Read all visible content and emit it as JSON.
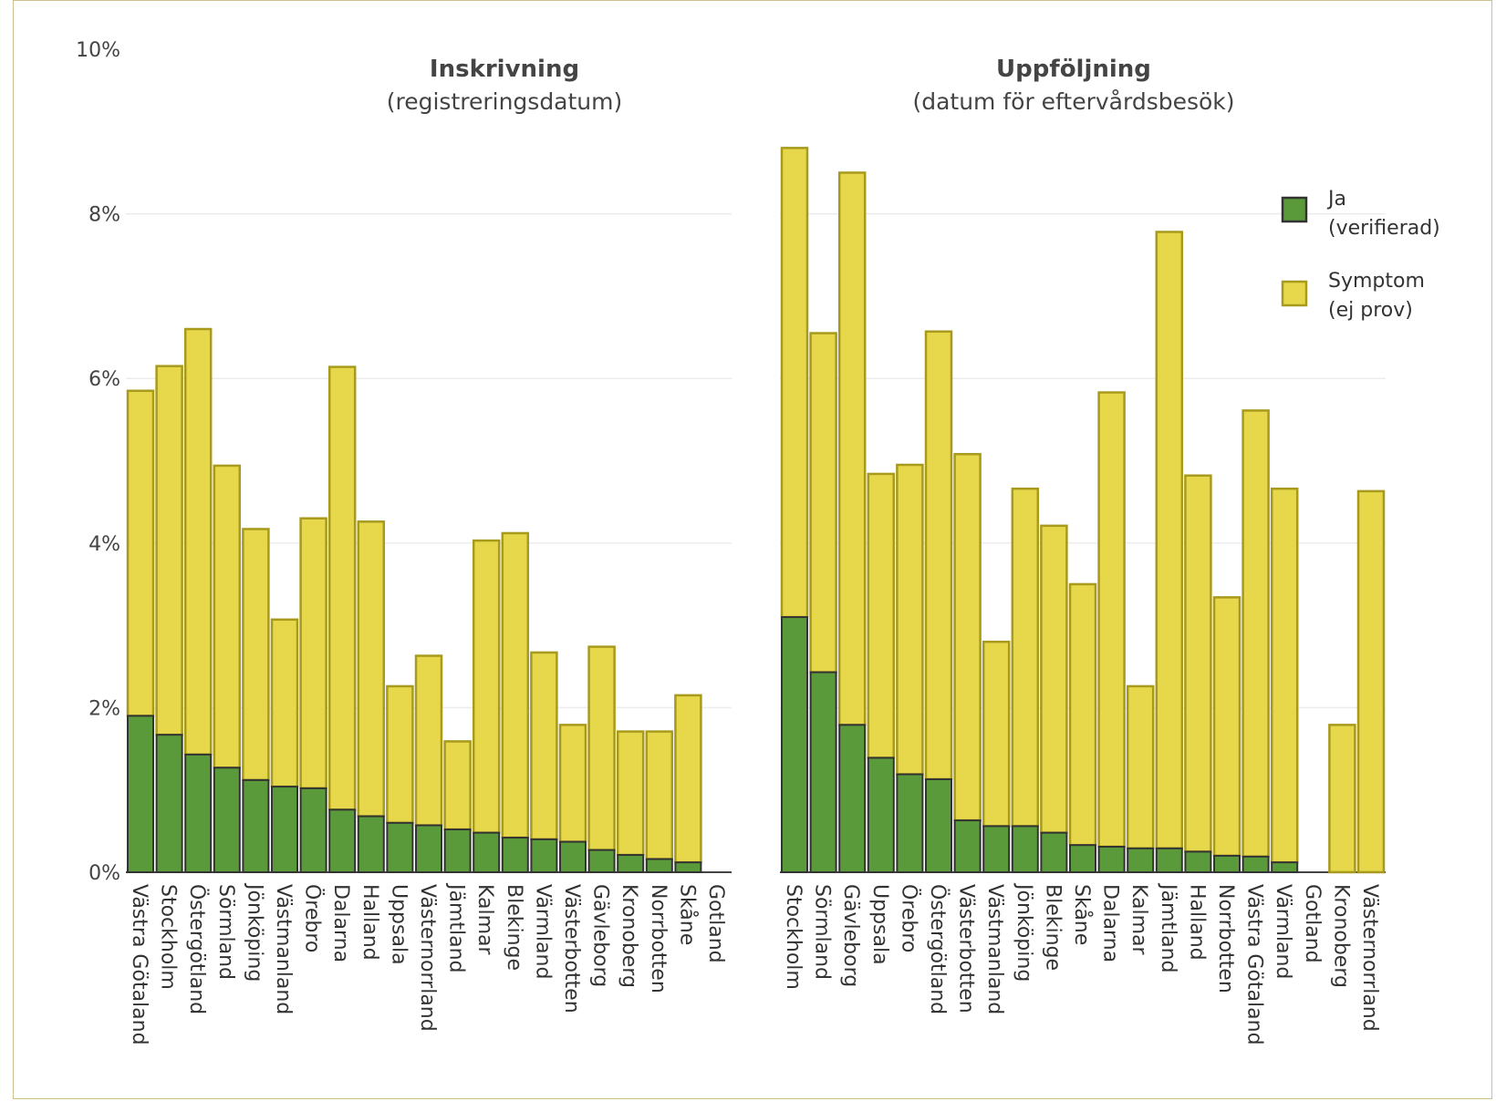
{
  "colors": {
    "ja": "#5b9a3a",
    "ja_stroke": "#333333",
    "symptom": "#e6d84a",
    "symptom_stroke": "#a89a1c",
    "grid": "#ececec",
    "axis": "#444444"
  },
  "legend": {
    "items": [
      {
        "key": "ja",
        "lines": [
          "Ja",
          "(verifierad)"
        ]
      },
      {
        "key": "symptom",
        "lines": [
          "Symptom",
          "(ej prov)"
        ]
      }
    ]
  },
  "chart_data": [
    {
      "type": "bar",
      "stacked": true,
      "title": "Inskrivning",
      "subtitle": "(registreringsdatum)",
      "ylim": [
        0,
        10
      ],
      "yticks": [
        "0%",
        "2%",
        "4%",
        "6%",
        "8%",
        "10%"
      ],
      "categories": [
        "Västra Götaland",
        "Stockholm",
        "Östergötland",
        "Sörmland",
        "Jönköping",
        "Västmanland",
        "Örebro",
        "Dalarna",
        "Halland",
        "Uppsala",
        "Västernorrland",
        "Jämtland",
        "Kalmar",
        "Blekinge",
        "Värmland",
        "Västerbotten",
        "Gävleborg",
        "Kronoberg",
        "Norrbotten",
        "Skåne",
        "Gotland"
      ],
      "series": [
        {
          "name": "Ja (verifierad)",
          "values": [
            1.9,
            1.67,
            1.43,
            1.27,
            1.12,
            1.04,
            1.02,
            0.76,
            0.68,
            0.6,
            0.57,
            0.52,
            0.48,
            0.42,
            0.4,
            0.37,
            0.27,
            0.21,
            0.16,
            0.12,
            0.0
          ]
        },
        {
          "name": "Symptom (ej prov)",
          "values": [
            3.95,
            4.48,
            5.17,
            3.67,
            3.05,
            2.03,
            3.28,
            5.38,
            3.58,
            1.66,
            2.06,
            1.07,
            3.55,
            3.7,
            2.27,
            1.42,
            2.47,
            1.5,
            1.55,
            2.03,
            0.0
          ]
        }
      ]
    },
    {
      "type": "bar",
      "stacked": true,
      "title": "Uppföljning",
      "subtitle": "(datum för eftervårdsbesök)",
      "ylim": [
        0,
        10
      ],
      "categories": [
        "Stockholm",
        "Sörmland",
        "Gävleborg",
        "Uppsala",
        "Örebro",
        "Östergötland",
        "Västerbotten",
        "Västmanland",
        "Jönköping",
        "Blekinge",
        "Skåne",
        "Dalarna",
        "Kalmar",
        "Jämtland",
        "Halland",
        "Norrbotten",
        "Västra Götaland",
        "Värmland",
        "Gotland",
        "Kronoberg",
        "Västernorrland"
      ],
      "series": [
        {
          "name": "Ja (verifierad)",
          "values": [
            3.1,
            2.43,
            1.79,
            1.39,
            1.19,
            1.13,
            0.63,
            0.56,
            0.56,
            0.48,
            0.33,
            0.31,
            0.29,
            0.29,
            0.25,
            0.2,
            0.19,
            0.12,
            0.0,
            0.0,
            0.0
          ]
        },
        {
          "name": "Symptom (ej prov)",
          "values": [
            5.7,
            4.12,
            6.71,
            3.45,
            3.76,
            5.44,
            4.45,
            2.24,
            4.1,
            3.73,
            3.17,
            5.52,
            1.97,
            7.49,
            4.57,
            3.14,
            5.42,
            4.54,
            0.0,
            1.79,
            4.63
          ]
        }
      ]
    }
  ]
}
